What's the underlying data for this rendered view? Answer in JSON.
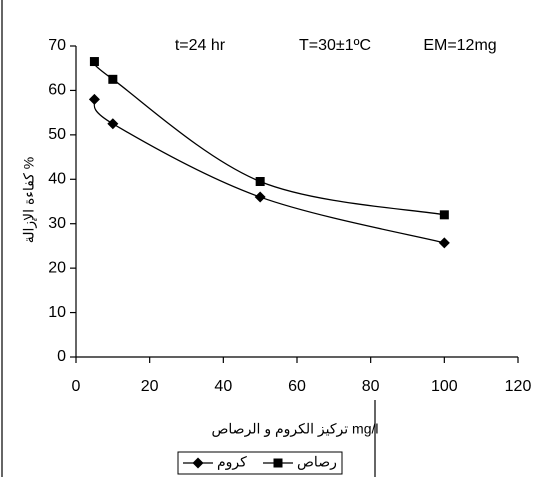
{
  "chart_data": {
    "type": "line",
    "annotations": [
      "t=24 hr",
      "T=30±1ºC",
      "EM=12mg"
    ],
    "x_label": "تركيز الكروم و الرصاص mg/l",
    "y_label": "كفاءة الإزالة %",
    "x": [
      5,
      10,
      50,
      100
    ],
    "series": [
      {
        "name": "كروم",
        "color": "#000000",
        "marker": "diamond",
        "values": [
          58,
          52.5,
          36,
          25.7
        ]
      },
      {
        "name": "رصاص",
        "color": "#000000",
        "marker": "square",
        "values": [
          66.5,
          62.5,
          39.5,
          32
        ]
      }
    ],
    "xlim": [
      0,
      120
    ],
    "xticks": [
      0,
      20,
      40,
      60,
      80,
      100,
      120
    ],
    "ylim": [
      0,
      70
    ],
    "yticks": [
      0,
      10,
      20,
      30,
      40,
      50,
      60,
      70
    ],
    "legend": "bottom",
    "smooth": true
  }
}
